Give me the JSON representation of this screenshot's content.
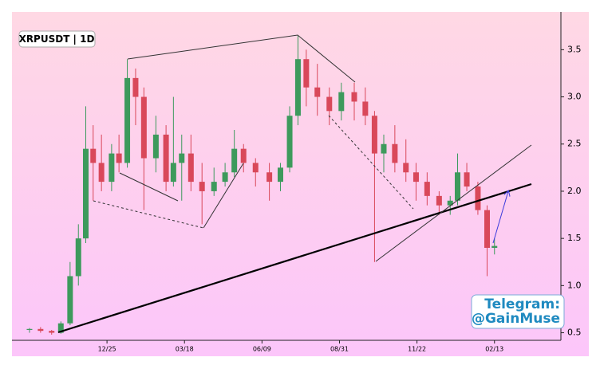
{
  "chart_data": {
    "type": "candlestick",
    "title": "XRPUSDT | 1D",
    "watermark": [
      "Telegram:",
      "@GainMuse"
    ],
    "x": [
      0,
      12,
      24,
      34,
      44,
      53,
      61,
      69,
      78,
      89,
      97,
      106,
      115,
      124,
      137,
      148,
      156,
      165,
      175,
      187,
      200,
      212,
      222,
      232,
      245,
      260,
      272,
      282,
      291,
      300,
      312,
      325,
      338,
      352,
      364,
      374,
      384,
      396,
      408,
      419,
      431,
      444,
      456,
      464,
      474,
      486,
      496,
      504
    ],
    "open": [
      0.53,
      0.54,
      0.52,
      0.5,
      0.6,
      1.1,
      1.5,
      2.45,
      2.3,
      2.1,
      2.4,
      2.3,
      3.2,
      3.0,
      2.35,
      2.6,
      2.1,
      2.3,
      2.4,
      2.1,
      2.0,
      2.1,
      2.2,
      2.45,
      2.3,
      2.2,
      2.1,
      2.25,
      2.8,
      3.4,
      3.1,
      3.0,
      2.85,
      3.05,
      2.95,
      2.8,
      2.4,
      2.5,
      2.3,
      2.2,
      2.1,
      1.95,
      1.85,
      1.9,
      2.2,
      2.05,
      1.8,
      1.4
    ],
    "high": [
      0.55,
      0.56,
      0.53,
      0.62,
      1.25,
      1.65,
      2.9,
      2.7,
      2.6,
      2.5,
      2.6,
      3.4,
      3.3,
      3.1,
      2.8,
      2.7,
      3.0,
      2.6,
      2.6,
      2.3,
      2.25,
      2.3,
      2.65,
      2.5,
      2.35,
      2.3,
      2.3,
      2.9,
      3.65,
      3.5,
      3.35,
      3.1,
      3.15,
      3.15,
      3.1,
      2.85,
      2.6,
      2.7,
      2.55,
      2.3,
      2.2,
      2.0,
      1.95,
      2.4,
      2.3,
      2.1,
      1.85,
      1.5
    ],
    "low": [
      0.5,
      0.5,
      0.48,
      0.49,
      0.58,
      1.0,
      1.45,
      1.9,
      2.0,
      2.0,
      2.2,
      2.25,
      2.7,
      1.8,
      2.2,
      2.0,
      2.05,
      1.9,
      2.0,
      1.65,
      1.95,
      2.05,
      2.15,
      2.2,
      2.05,
      1.9,
      2.0,
      2.2,
      2.7,
      2.9,
      2.8,
      2.7,
      2.75,
      2.75,
      2.7,
      1.25,
      2.2,
      2.2,
      2.1,
      1.9,
      1.85,
      1.75,
      1.75,
      1.85,
      2.0,
      1.75,
      1.1,
      1.33
    ],
    "close": [
      0.54,
      0.52,
      0.5,
      0.6,
      1.1,
      1.5,
      2.45,
      2.3,
      2.1,
      2.4,
      2.3,
      3.2,
      3.0,
      2.35,
      2.6,
      2.1,
      2.3,
      2.4,
      2.1,
      2.0,
      2.1,
      2.2,
      2.45,
      2.3,
      2.2,
      2.1,
      2.25,
      2.8,
      3.4,
      3.1,
      3.0,
      2.85,
      3.05,
      2.95,
      2.8,
      2.4,
      2.5,
      2.3,
      2.2,
      2.1,
      1.95,
      1.85,
      1.9,
      2.2,
      2.05,
      1.8,
      1.4,
      1.42
    ],
    "up_color": "#3d9a5c",
    "down_color": "#d9485a",
    "xlim": [
      -19,
      576
    ],
    "xticks": [
      {
        "value": 84,
        "label": "12/25"
      },
      {
        "value": 168,
        "label": "03/18"
      },
      {
        "value": 252,
        "label": "06/09"
      },
      {
        "value": 336,
        "label": "08/31"
      },
      {
        "value": 420,
        "label": "11/22"
      },
      {
        "value": 504,
        "label": "02/13"
      }
    ],
    "ylim": [
      0.42,
      3.9
    ],
    "yticks": [
      0.5,
      {
        "value": 1,
        "label": "1.0"
      },
      1.5,
      {
        "value": 2,
        "label": "2.0"
      },
      2.5,
      {
        "value": 3,
        "label": "3.0"
      },
      3.5
    ]
  }
}
